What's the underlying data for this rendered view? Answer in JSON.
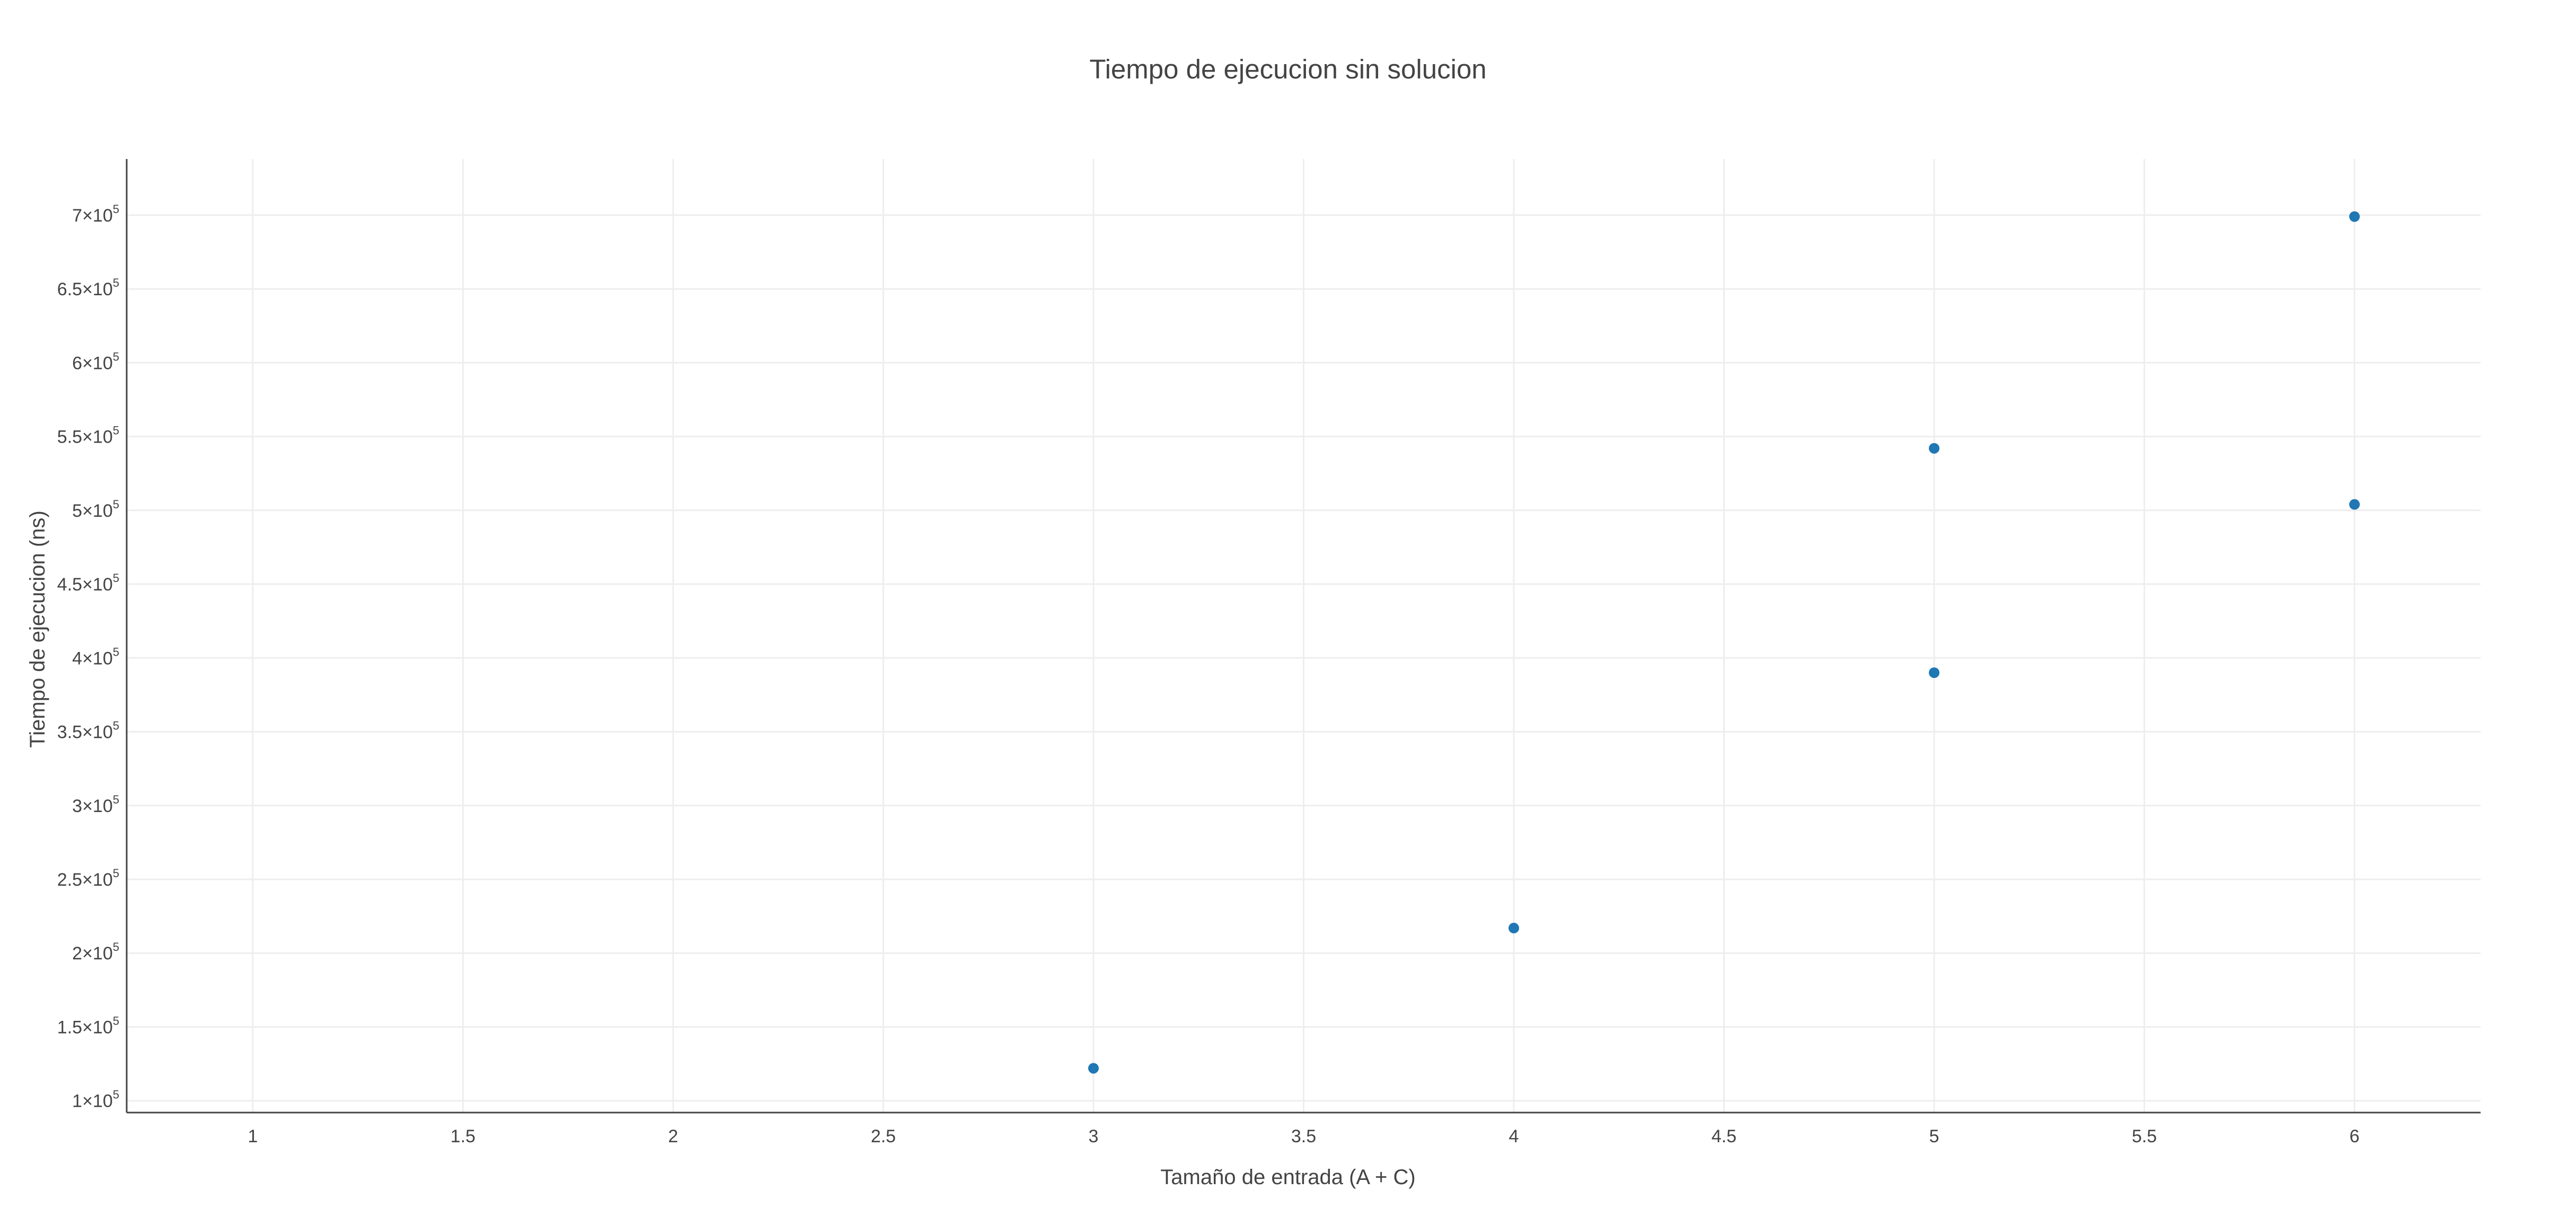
{
  "chart_data": {
    "type": "scatter",
    "title": "Tiempo de ejecucion sin solucion",
    "xlabel": "Tamaño de entrada (A + C)",
    "ylabel": "Tiempo de ejecucion (ns)",
    "xlim": [
      0.7,
      6.3
    ],
    "ylim": [
      92000,
      738000
    ],
    "x_ticks": [
      1,
      1.5,
      2,
      2.5,
      3,
      3.5,
      4,
      4.5,
      5,
      5.5,
      6
    ],
    "x_tick_labels": [
      "1",
      "1.5",
      "2",
      "2.5",
      "3",
      "3.5",
      "4",
      "4.5",
      "5",
      "5.5",
      "6"
    ],
    "y_ticks": [
      100000,
      150000,
      200000,
      250000,
      300000,
      350000,
      400000,
      450000,
      500000,
      550000,
      600000,
      650000,
      700000
    ],
    "y_tick_labels": [
      {
        "mantissa": "1",
        "exp": "5"
      },
      {
        "mantissa": "1.5",
        "exp": "5"
      },
      {
        "mantissa": "2",
        "exp": "5"
      },
      {
        "mantissa": "2.5",
        "exp": "5"
      },
      {
        "mantissa": "3",
        "exp": "5"
      },
      {
        "mantissa": "3.5",
        "exp": "5"
      },
      {
        "mantissa": "4",
        "exp": "5"
      },
      {
        "mantissa": "4.5",
        "exp": "5"
      },
      {
        "mantissa": "5",
        "exp": "5"
      },
      {
        "mantissa": "5.5",
        "exp": "5"
      },
      {
        "mantissa": "6",
        "exp": "5"
      },
      {
        "mantissa": "6.5",
        "exp": "5"
      },
      {
        "mantissa": "7",
        "exp": "5"
      }
    ],
    "grid": true,
    "legend": false,
    "series": [
      {
        "color": "#1f77b4",
        "x": [
          3,
          4,
          5,
          5,
          6,
          6
        ],
        "y": [
          122000,
          217000,
          390000,
          542000,
          504000,
          699000
        ]
      }
    ]
  }
}
